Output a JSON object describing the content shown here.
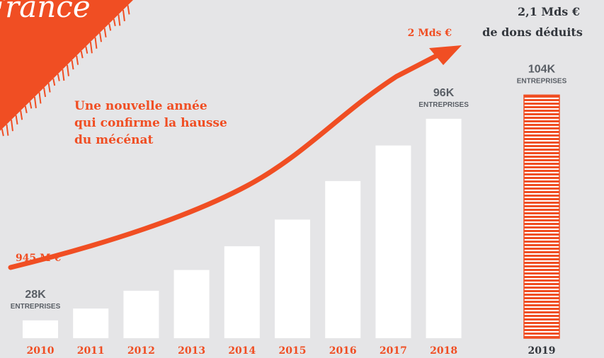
{
  "chart_data": {
    "type": "bar",
    "title": "France",
    "categories": [
      "2010",
      "2011",
      "2012",
      "2013",
      "2014",
      "2015",
      "2016",
      "2017",
      "2018",
      "2019"
    ],
    "values": [
      28,
      32,
      38,
      45,
      53,
      62,
      75,
      87,
      96,
      104
    ],
    "value_labels": [
      "28K",
      null,
      null,
      null,
      null,
      null,
      null,
      null,
      "96K",
      "104K"
    ],
    "unit_label": "ENTREPRISES",
    "colors": [
      "#ffffff",
      "#ffffff",
      "#ffffff",
      "#ffffff",
      "#ffffff",
      "#ffffff",
      "#ffffff",
      "#ffffff",
      "#ffffff",
      "#f04e23"
    ],
    "label_colors": [
      "#f04e23",
      "#f04e23",
      "#f04e23",
      "#f04e23",
      "#f04e23",
      "#f04e23",
      "#f04e23",
      "#f04e23",
      "#f04e23",
      "#33373d"
    ],
    "ylim": [
      22,
      106
    ],
    "annotations": {
      "start_amount": "945 M €",
      "end_amount": "2 Mds €",
      "total_amount": "2,1 Mds €",
      "total_caption": "de dons déduits",
      "message": [
        "Une nouvelle année",
        "qui confirme la hausse",
        "du mécénat"
      ]
    }
  }
}
